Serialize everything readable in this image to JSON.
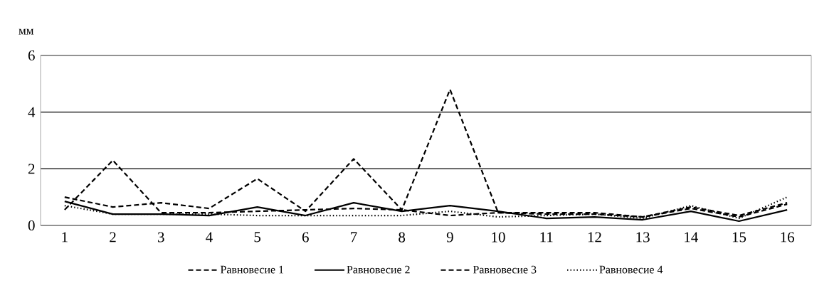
{
  "chart_data": {
    "type": "line",
    "ylabel": "мм",
    "categories": [
      "1",
      "2",
      "3",
      "4",
      "5",
      "6",
      "7",
      "8",
      "9",
      "10",
      "11",
      "12",
      "13",
      "14",
      "15",
      "16"
    ],
    "series": [
      {
        "name": "Равновесие 1",
        "color": "#000000",
        "line_style": "dashed",
        "values": [
          0.55,
          2.3,
          0.45,
          0.45,
          0.5,
          0.55,
          0.6,
          0.55,
          0.35,
          0.45,
          0.4,
          0.4,
          0.3,
          0.6,
          0.3,
          0.75
        ]
      },
      {
        "name": "Равновесие 2",
        "color": "#000000",
        "line_style": "solid",
        "values": [
          0.85,
          0.4,
          0.4,
          0.35,
          0.65,
          0.35,
          0.8,
          0.5,
          0.7,
          0.5,
          0.25,
          0.3,
          0.2,
          0.5,
          0.15,
          0.55
        ]
      },
      {
        "name": "Равновесие 3",
        "color": "#000000",
        "line_style": "dashed",
        "values": [
          1.0,
          0.65,
          0.8,
          0.6,
          1.65,
          0.5,
          2.35,
          0.55,
          4.8,
          0.45,
          0.45,
          0.45,
          0.3,
          0.65,
          0.35,
          0.8
        ]
      },
      {
        "name": "Равновесие 4",
        "color": "#000000",
        "line_style": "dotted",
        "values": [
          0.7,
          0.4,
          0.4,
          0.4,
          0.35,
          0.35,
          0.35,
          0.35,
          0.5,
          0.3,
          0.35,
          0.4,
          0.25,
          0.7,
          0.25,
          1.0
        ]
      }
    ],
    "ylim": [
      0,
      6
    ],
    "yticks": [
      0,
      2,
      4,
      6
    ],
    "grid": "y",
    "legend": "bottom"
  }
}
